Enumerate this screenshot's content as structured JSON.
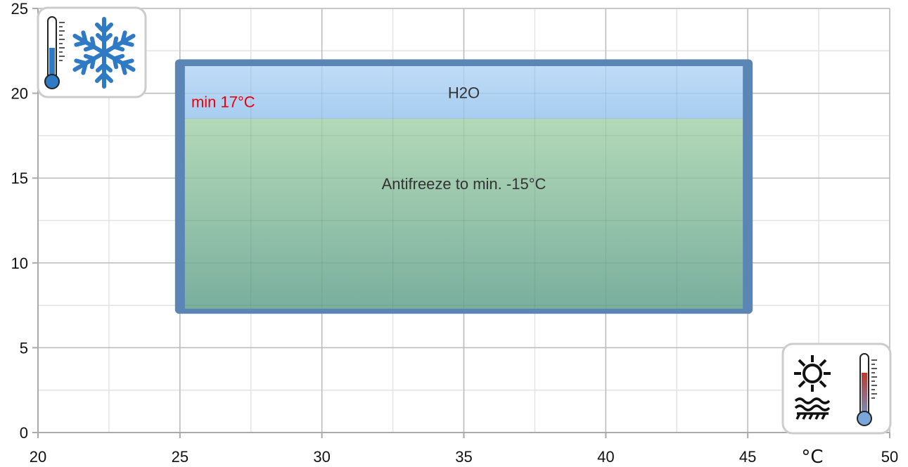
{
  "chart_data": {
    "type": "area",
    "xlim": [
      20,
      50
    ],
    "ylim": [
      0,
      25
    ],
    "x_ticks": [
      20,
      25,
      30,
      35,
      40,
      45,
      50
    ],
    "y_ticks": [
      0,
      5,
      10,
      15,
      20,
      25
    ],
    "x_minor_step": 2.5,
    "y_minor_step": 2.5,
    "grid": true,
    "x_unit_label": "°C",
    "regions": [
      {
        "label": "H2O",
        "x": [
          25,
          45
        ],
        "y": [
          18.5,
          21.6
        ],
        "color": "#b7d6f5"
      },
      {
        "label": "Antifreeze to min. -15°C",
        "x": [
          25,
          45
        ],
        "y": [
          7.3,
          18.5
        ],
        "color_top": "#b3d9b8",
        "color_bottom": "#7aaf9e"
      }
    ],
    "outline": {
      "x": [
        25,
        45
      ],
      "y": [
        7,
        22
      ],
      "color": "#5b85b5"
    },
    "annotation": {
      "text": "min 17°C",
      "x": 25.4,
      "y": 19.5,
      "color": "#e8000b"
    },
    "icons": {
      "top_left": [
        "thermometer-cold-icon",
        "snowflake-icon"
      ],
      "bottom_right": [
        "sun-icon",
        "heat-waves-icon",
        "thermometer-hot-icon"
      ]
    },
    "colors": {
      "grid": "#bbbbbb",
      "axis": "#aaaaaa",
      "cold_blue": "#2f7ac4",
      "hot_red": "#c0392b"
    }
  }
}
